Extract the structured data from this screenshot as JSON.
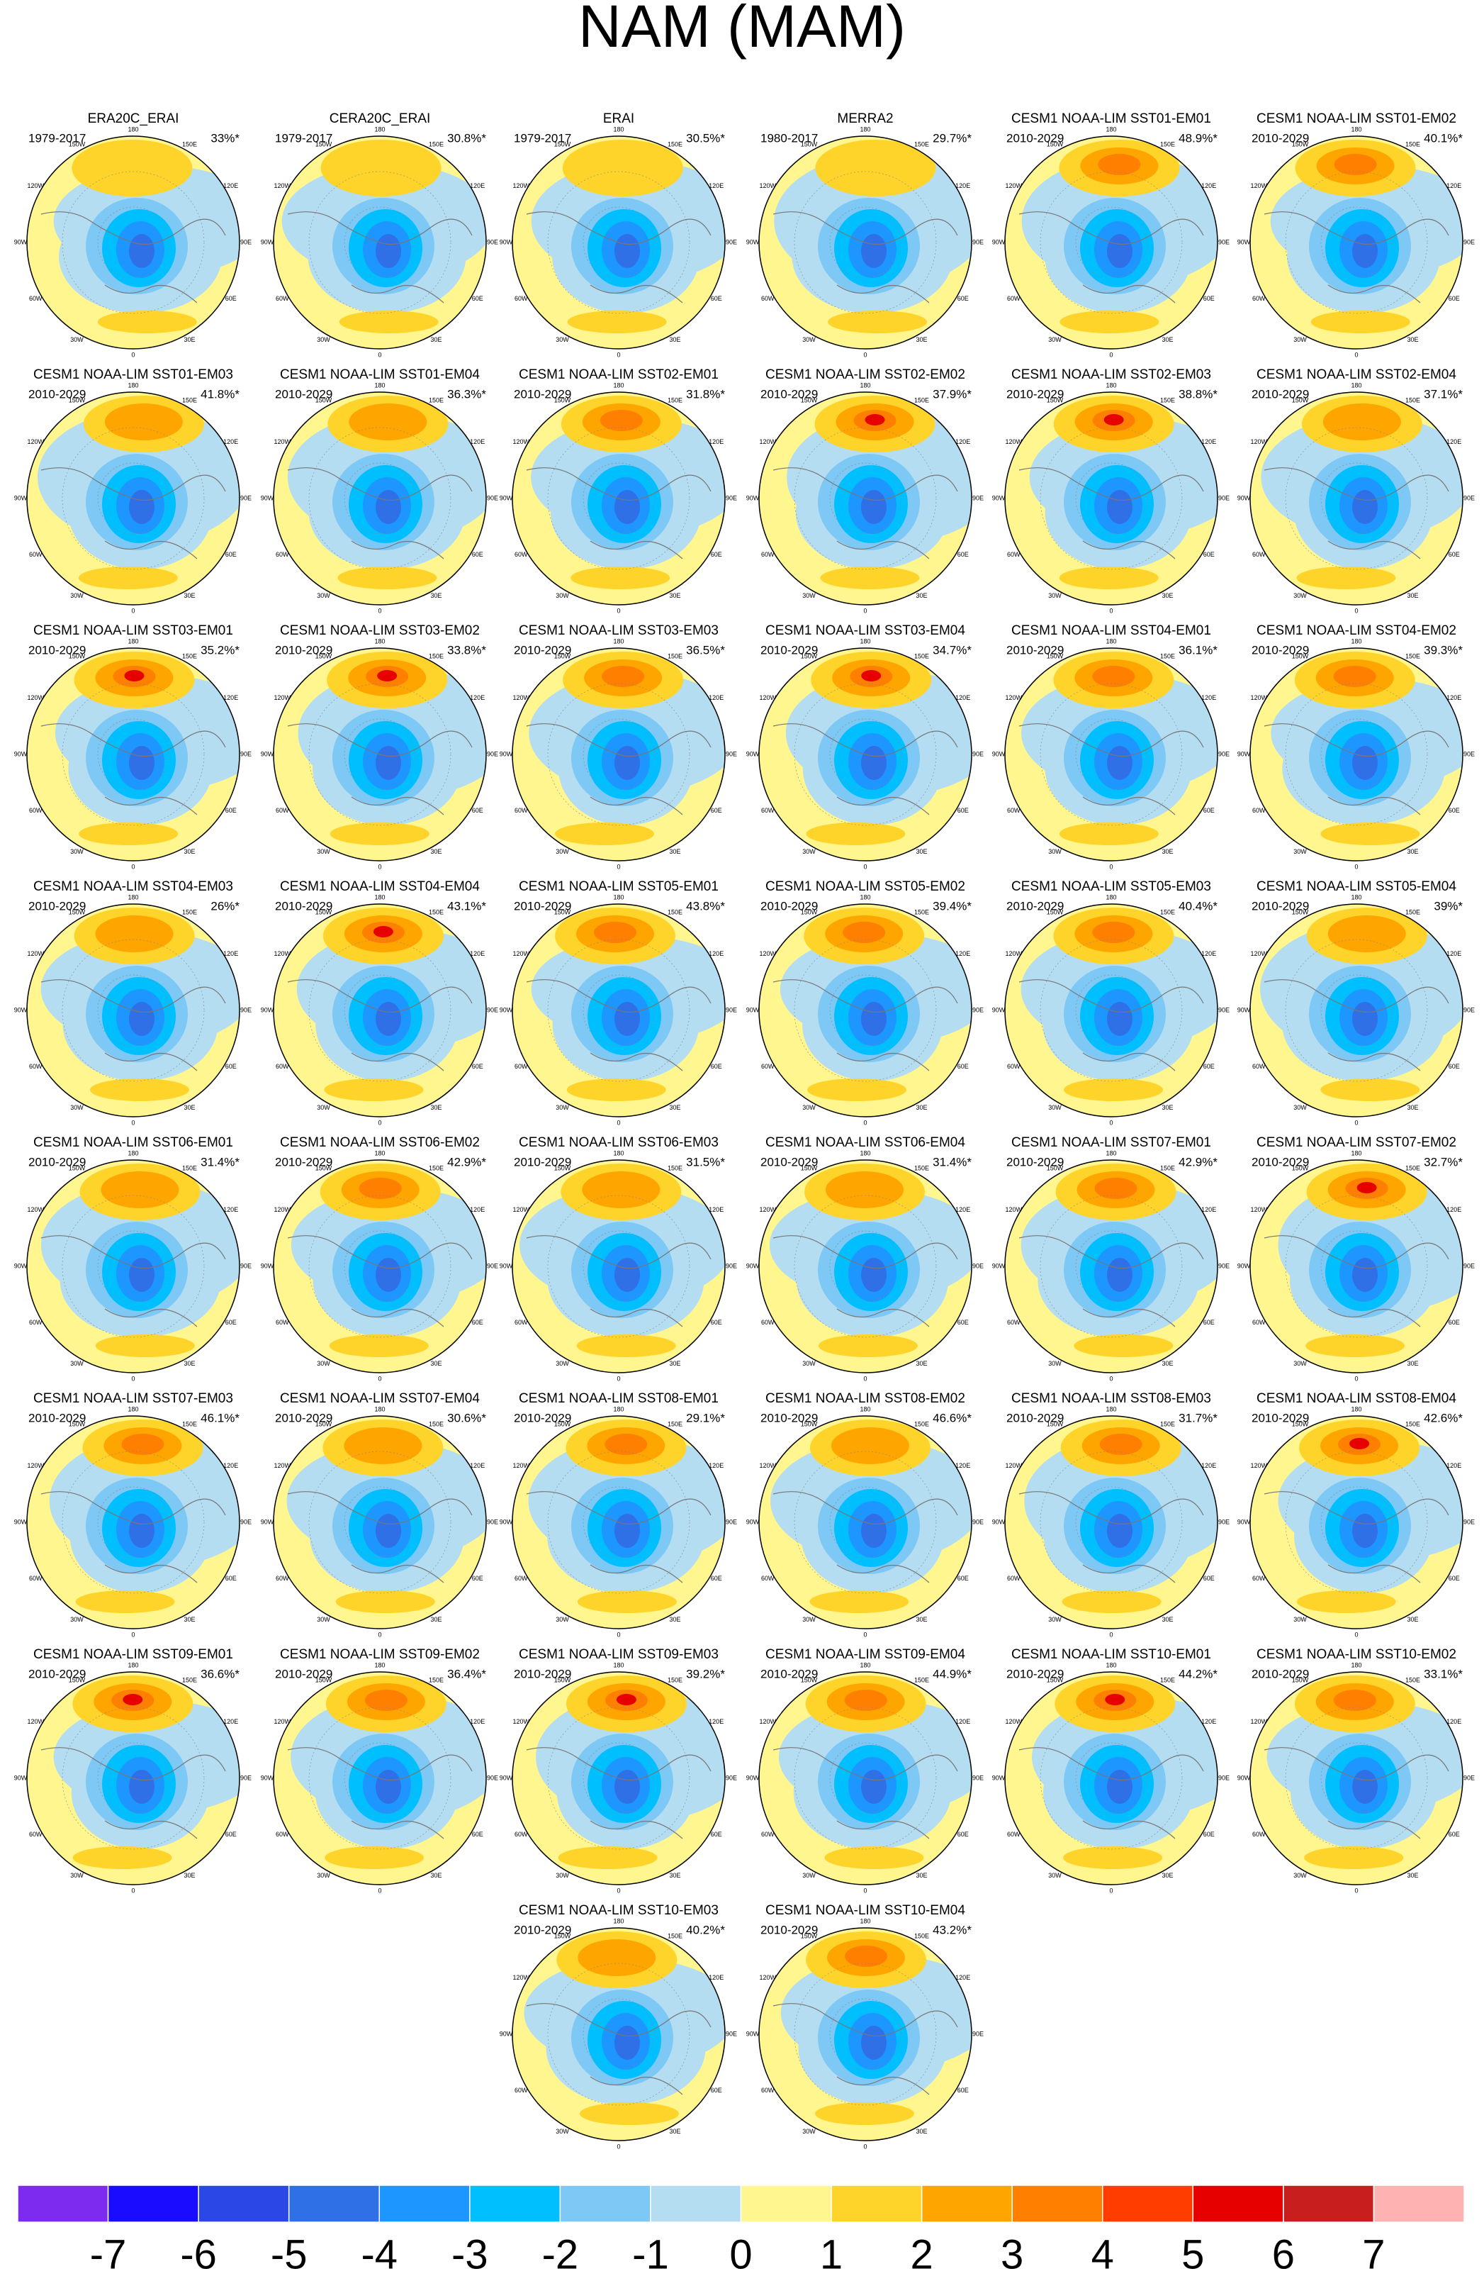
{
  "title": "NAM (MAM)",
  "lon_labels": [
    "180",
    "150E",
    "120E",
    "90E",
    "60E",
    "30E",
    "0",
    "30W",
    "60W",
    "90W",
    "120W",
    "150W"
  ],
  "panels": [
    {
      "title": "ERA20C_ERAI",
      "period": "1979-2017",
      "variance": "33%*"
    },
    {
      "title": "CERA20C_ERAI",
      "period": "1979-2017",
      "variance": "30.8%*"
    },
    {
      "title": "ERAI",
      "period": "1979-2017",
      "variance": "30.5%*"
    },
    {
      "title": "MERRA2",
      "period": "1980-2017",
      "variance": "29.7%*"
    },
    {
      "title": "CESM1 NOAA-LIM SST01-EM01",
      "period": "2010-2029",
      "variance": "48.9%*"
    },
    {
      "title": "CESM1 NOAA-LIM SST01-EM02",
      "period": "2010-2029",
      "variance": "40.1%*"
    },
    {
      "title": "CESM1 NOAA-LIM SST01-EM03",
      "period": "2010-2029",
      "variance": "41.8%*"
    },
    {
      "title": "CESM1 NOAA-LIM SST01-EM04",
      "period": "2010-2029",
      "variance": "36.3%*"
    },
    {
      "title": "CESM1 NOAA-LIM SST02-EM01",
      "period": "2010-2029",
      "variance": "31.8%*"
    },
    {
      "title": "CESM1 NOAA-LIM SST02-EM02",
      "period": "2010-2029",
      "variance": "37.9%*"
    },
    {
      "title": "CESM1 NOAA-LIM SST02-EM03",
      "period": "2010-2029",
      "variance": "38.8%*"
    },
    {
      "title": "CESM1 NOAA-LIM SST02-EM04",
      "period": "2010-2029",
      "variance": "37.1%*"
    },
    {
      "title": "CESM1 NOAA-LIM SST03-EM01",
      "period": "2010-2029",
      "variance": "35.2%*"
    },
    {
      "title": "CESM1 NOAA-LIM SST03-EM02",
      "period": "2010-2029",
      "variance": "33.8%*"
    },
    {
      "title": "CESM1 NOAA-LIM SST03-EM03",
      "period": "2010-2029",
      "variance": "36.5%*"
    },
    {
      "title": "CESM1 NOAA-LIM SST03-EM04",
      "period": "2010-2029",
      "variance": "34.7%*"
    },
    {
      "title": "CESM1 NOAA-LIM SST04-EM01",
      "period": "2010-2029",
      "variance": "36.1%*"
    },
    {
      "title": "CESM1 NOAA-LIM SST04-EM02",
      "period": "2010-2029",
      "variance": "39.3%*"
    },
    {
      "title": "CESM1 NOAA-LIM SST04-EM03",
      "period": "2010-2029",
      "variance": "26%*"
    },
    {
      "title": "CESM1 NOAA-LIM SST04-EM04",
      "period": "2010-2029",
      "variance": "43.1%*"
    },
    {
      "title": "CESM1 NOAA-LIM SST05-EM01",
      "period": "2010-2029",
      "variance": "43.8%*"
    },
    {
      "title": "CESM1 NOAA-LIM SST05-EM02",
      "period": "2010-2029",
      "variance": "39.4%*"
    },
    {
      "title": "CESM1 NOAA-LIM SST05-EM03",
      "period": "2010-2029",
      "variance": "40.4%*"
    },
    {
      "title": "CESM1 NOAA-LIM SST05-EM04",
      "period": "2010-2029",
      "variance": "39%*"
    },
    {
      "title": "CESM1 NOAA-LIM SST06-EM01",
      "period": "2010-2029",
      "variance": "31.4%*"
    },
    {
      "title": "CESM1 NOAA-LIM SST06-EM02",
      "period": "2010-2029",
      "variance": "42.9%*"
    },
    {
      "title": "CESM1 NOAA-LIM SST06-EM03",
      "period": "2010-2029",
      "variance": "31.5%*"
    },
    {
      "title": "CESM1 NOAA-LIM SST06-EM04",
      "period": "2010-2029",
      "variance": "31.4%*"
    },
    {
      "title": "CESM1 NOAA-LIM SST07-EM01",
      "period": "2010-2029",
      "variance": "42.9%*"
    },
    {
      "title": "CESM1 NOAA-LIM SST07-EM02",
      "period": "2010-2029",
      "variance": "32.7%*"
    },
    {
      "title": "CESM1 NOAA-LIM SST07-EM03",
      "period": "2010-2029",
      "variance": "46.1%*"
    },
    {
      "title": "CESM1 NOAA-LIM SST07-EM04",
      "period": "2010-2029",
      "variance": "30.6%*"
    },
    {
      "title": "CESM1 NOAA-LIM SST08-EM01",
      "period": "2010-2029",
      "variance": "29.1%*"
    },
    {
      "title": "CESM1 NOAA-LIM SST08-EM02",
      "period": "2010-2029",
      "variance": "46.6%*"
    },
    {
      "title": "CESM1 NOAA-LIM SST08-EM03",
      "period": "2010-2029",
      "variance": "31.7%*"
    },
    {
      "title": "CESM1 NOAA-LIM SST08-EM04",
      "period": "2010-2029",
      "variance": "42.6%*"
    },
    {
      "title": "CESM1 NOAA-LIM SST09-EM01",
      "period": "2010-2029",
      "variance": "36.6%*"
    },
    {
      "title": "CESM1 NOAA-LIM SST09-EM02",
      "period": "2010-2029",
      "variance": "36.4%*"
    },
    {
      "title": "CESM1 NOAA-LIM SST09-EM03",
      "period": "2010-2029",
      "variance": "39.2%*"
    },
    {
      "title": "CESM1 NOAA-LIM SST09-EM04",
      "period": "2010-2029",
      "variance": "44.9%*"
    },
    {
      "title": "CESM1 NOAA-LIM SST10-EM01",
      "period": "2010-2029",
      "variance": "44.2%*"
    },
    {
      "title": "CESM1 NOAA-LIM SST10-EM02",
      "period": "2010-2029",
      "variance": "33.1%*"
    },
    {
      "title": "CESM1 NOAA-LIM SST10-EM03",
      "period": "2010-2029",
      "variance": "40.2%*"
    },
    {
      "title": "CESM1 NOAA-LIM SST10-EM04",
      "period": "2010-2029",
      "variance": "43.2%*"
    }
  ],
  "colorbar": {
    "colors": [
      "#7d2bef",
      "#1a0dff",
      "#2b48e6",
      "#3070e6",
      "#1e96ff",
      "#00bfff",
      "#7ec8f5",
      "#b4ddf2",
      "#fff68f",
      "#ffd42a",
      "#ffa500",
      "#ff7f00",
      "#ff3d00",
      "#e60000",
      "#c81e1e",
      "#ffb2b2"
    ],
    "labels": [
      -7,
      -6,
      -5,
      -4,
      -3,
      -2,
      -1,
      0,
      1,
      2,
      3,
      4,
      5,
      6,
      7
    ]
  }
}
